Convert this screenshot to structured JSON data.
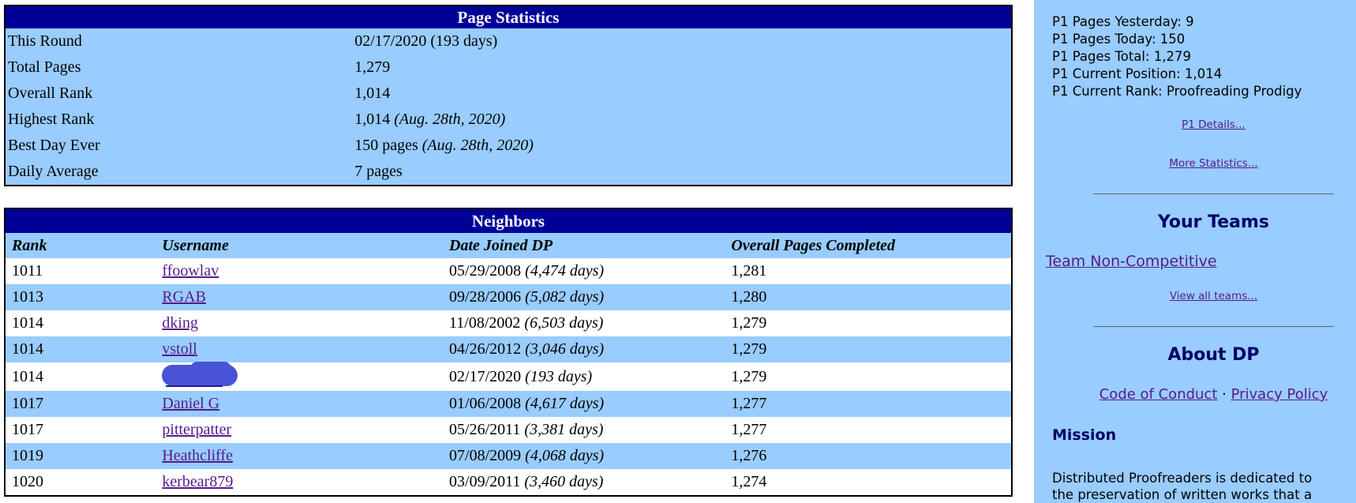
{
  "colors": {
    "navy_header": "#000099",
    "light_blue": "#99ccff",
    "link_purple": "#551a8b",
    "heading_navy": "#000066",
    "redaction_blue": "#4a52d6"
  },
  "page_stats": {
    "title": "Page Statistics",
    "rows": [
      {
        "label": "This Round",
        "value": "02/17/2020 (193 days)",
        "note": ""
      },
      {
        "label": "Total Pages",
        "value": "1,279",
        "note": ""
      },
      {
        "label": "Overall Rank",
        "value": "1,014",
        "note": ""
      },
      {
        "label": "Highest Rank",
        "value": "1,014",
        "note": "(Aug. 28th, 2020)"
      },
      {
        "label": "Best Day Ever",
        "value": "150 pages",
        "note": "(Aug. 28th, 2020)"
      },
      {
        "label": "Daily Average",
        "value": "7 pages",
        "note": ""
      }
    ]
  },
  "neighbors": {
    "title": "Neighbors",
    "columns": [
      "Rank",
      "Username",
      "Date Joined DP",
      "Overall Pages Completed"
    ],
    "rows": [
      {
        "rank": "1011",
        "username": "ffoowlav",
        "redacted": false,
        "date": "05/29/2008",
        "days_note": "(4,474 days)",
        "pages": "1,281"
      },
      {
        "rank": "1013",
        "username": "RGAB",
        "redacted": false,
        "date": "09/28/2006",
        "days_note": "(5,082 days)",
        "pages": "1,280"
      },
      {
        "rank": "1014",
        "username": "dking",
        "redacted": false,
        "date": "11/08/2002",
        "days_note": "(6,503 days)",
        "pages": "1,279"
      },
      {
        "rank": "1014",
        "username": "vstoll",
        "redacted": false,
        "date": "04/26/2012",
        "days_note": "(3,046 days)",
        "pages": "1,279"
      },
      {
        "rank": "1014",
        "username": "",
        "redacted": true,
        "date": "02/17/2020",
        "days_note": "(193 days)",
        "pages": "1,279"
      },
      {
        "rank": "1017",
        "username": "Daniel G",
        "redacted": false,
        "date": "01/06/2008",
        "days_note": "(4,617 days)",
        "pages": "1,277"
      },
      {
        "rank": "1017",
        "username": "pitterpatter",
        "redacted": false,
        "date": "05/26/2011",
        "days_note": "(3,381 days)",
        "pages": "1,277"
      },
      {
        "rank": "1019",
        "username": "Heathcliffe",
        "redacted": false,
        "date": "07/08/2009",
        "days_note": "(4,068 days)",
        "pages": "1,276"
      },
      {
        "rank": "1020",
        "username": "kerbear879",
        "redacted": false,
        "date": "03/09/2011",
        "days_note": "(3,460 days)",
        "pages": "1,274"
      }
    ]
  },
  "sidebar": {
    "stats": [
      "P1 Pages Yesterday: 9",
      "P1 Pages Today: 150",
      "P1 Pages Total: 1,279",
      "P1 Current Position: 1,014",
      "P1 Current Rank: Proofreading Prodigy"
    ],
    "links": {
      "p1_details": "P1 Details...",
      "more_statistics": "More Statistics...",
      "team": "Team Non-Competitive",
      "view_all_teams": "View all teams...",
      "code_of_conduct": "Code of Conduct",
      "privacy_policy": "Privacy Policy"
    },
    "link_separator": "·",
    "headings": {
      "your_teams": "Your Teams",
      "about_dp": "About DP",
      "mission": "Mission"
    },
    "mission_lines": [
      "Distributed Proofreaders is dedicated to",
      "the preservation of written works that a"
    ]
  }
}
